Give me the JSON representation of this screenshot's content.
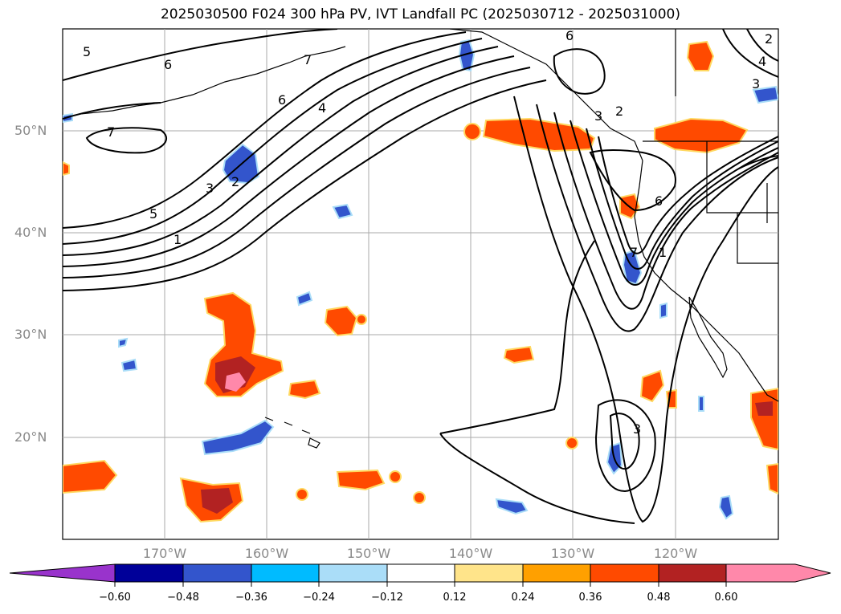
{
  "title": "2025030500 F024 300 hPa PV, IVT Landfall PC (2025030712 - 2025031000)",
  "lat_ticks": [
    "50°N",
    "40°N",
    "30°N",
    "20°N"
  ],
  "lon_ticks": [
    "170°W",
    "160°W",
    "150°W",
    "140°W",
    "130°W",
    "120°W"
  ],
  "colorbar": {
    "labels": [
      "−0.60",
      "−0.48",
      "−0.36",
      "−0.24",
      "−0.12",
      "0.12",
      "0.24",
      "0.36",
      "0.48",
      "0.60"
    ],
    "colors": [
      "#9933cc",
      "#000099",
      "#3355cc",
      "#00bbff",
      "#aaddf8",
      "#ffffff",
      "#ffe48a",
      "#ffa000",
      "#ff4a00",
      "#b22222",
      "#ff88aa"
    ]
  },
  "contour_labels": [
    "5",
    "6",
    "7",
    "6",
    "4",
    "3",
    "2",
    "5",
    "1",
    "7",
    "2",
    "6",
    "3",
    "4",
    "3",
    "2",
    "6",
    "7",
    "1",
    "3"
  ],
  "colors": {
    "coast": "#000000",
    "grid": "#aaaaaa",
    "contour": "#000000"
  }
}
